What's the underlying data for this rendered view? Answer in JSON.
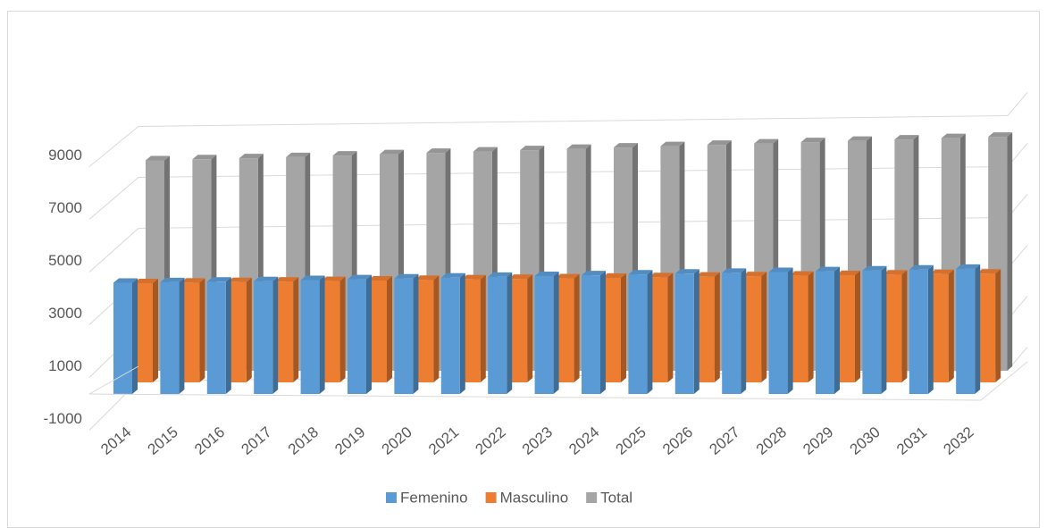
{
  "chart_data": {
    "type": "bar3d",
    "categories": [
      "2014",
      "2015",
      "2016",
      "2017",
      "2018",
      "2019",
      "2020",
      "2021",
      "2022",
      "2023",
      "2024",
      "2025",
      "2026",
      "2027",
      "2028",
      "2029",
      "2030",
      "2031",
      "2032"
    ],
    "series": [
      {
        "name": "Femenino",
        "color": "#5b9bd5",
        "values": [
          4150,
          4170,
          4190,
          4210,
          4250,
          4280,
          4310,
          4340,
          4370,
          4400,
          4430,
          4460,
          4490,
          4520,
          4550,
          4580,
          4610,
          4640,
          4670
        ]
      },
      {
        "name": "Masculino",
        "color": "#ed7d31",
        "values": [
          3700,
          3720,
          3740,
          3760,
          3780,
          3800,
          3820,
          3840,
          3860,
          3880,
          3900,
          3920,
          3940,
          3960,
          3980,
          4000,
          4020,
          4040,
          4060
        ]
      },
      {
        "name": "Total",
        "color": "#a5a5a5",
        "values": [
          7850,
          7890,
          7930,
          7970,
          8030,
          8080,
          8130,
          8180,
          8230,
          8280,
          8330,
          8380,
          8430,
          8480,
          8530,
          8580,
          8630,
          8680,
          8730
        ]
      }
    ],
    "ylim": [
      -1000,
      10000
    ],
    "yticks": [
      -1000,
      1000,
      3000,
      5000,
      7000,
      9000
    ],
    "grid": true,
    "legend": "bottom"
  }
}
